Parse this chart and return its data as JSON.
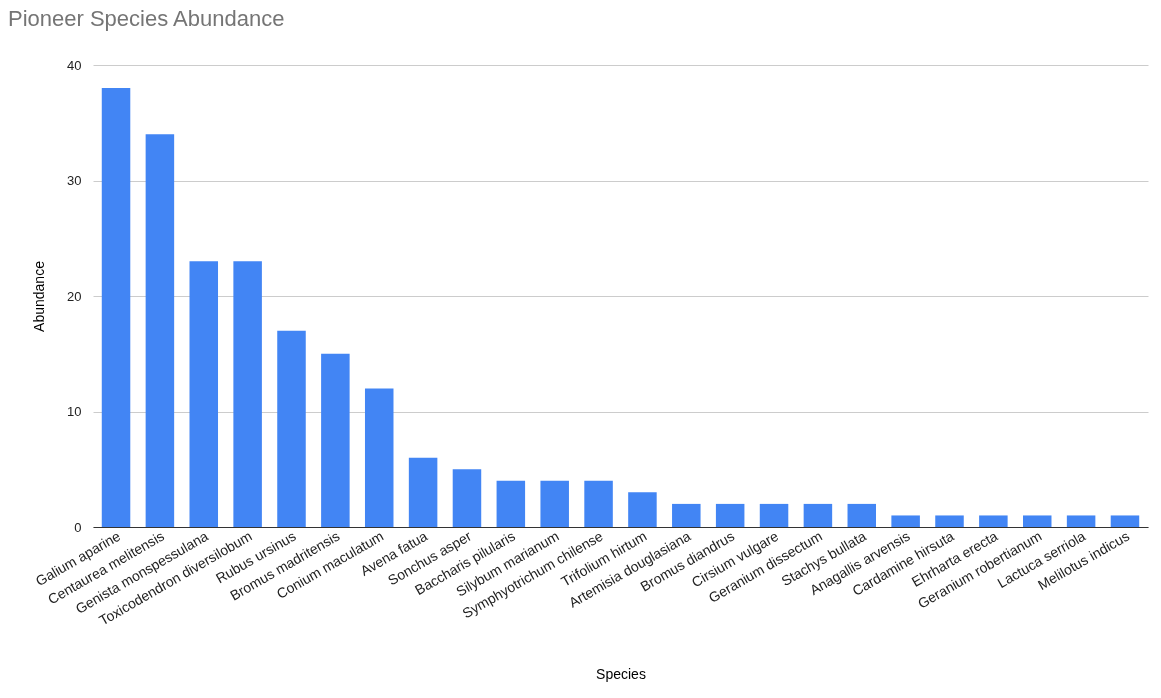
{
  "chart_data": {
    "type": "bar",
    "title": "Pioneer Species Abundance",
    "xlabel": "Species",
    "ylabel": "Abundance",
    "categories": [
      "Galium aparine",
      "Centaurea melitensis",
      "Genista monspessulana",
      "Toxicodendron diversilobum",
      "Rubus ursinus",
      "Bromus madritensis",
      "Conium maculatum",
      "Avena fatua",
      "Sonchus asper",
      "Baccharis pilularis",
      "Silybum marianum",
      "Symphyotrichum chilense",
      "Trifolium hirtum",
      "Artemisia douglasiana",
      "Bromus diandrus",
      "Cirsium vulgare",
      "Geranium dissectum",
      "Stachys bullata",
      "Anagallis arvensis",
      "Cardamine hirsuta",
      "Ehrharta erecta",
      "Geranium robertianum",
      "Lactuca serriola",
      "Melilotus indicus"
    ],
    "values": [
      38,
      34,
      23,
      23,
      17,
      15,
      12,
      6,
      5,
      4,
      4,
      4,
      3,
      2,
      2,
      2,
      2,
      2,
      1,
      1,
      1,
      1,
      1,
      1
    ],
    "color": "#4285f4",
    "ylim": [
      0,
      40
    ],
    "yticks": [
      0,
      10,
      20,
      30,
      40
    ],
    "grid": "y"
  }
}
